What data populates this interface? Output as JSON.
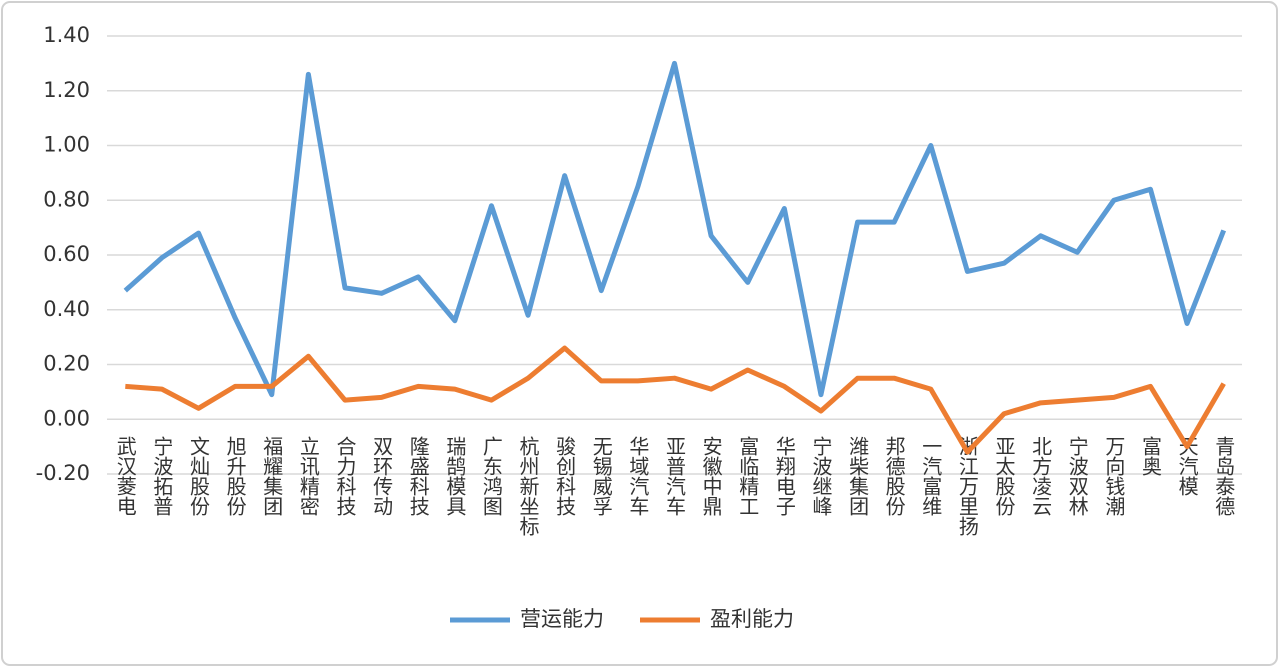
{
  "chart_data": {
    "type": "line",
    "categories": [
      "武汉菱电",
      "宁波拓普",
      "文灿股份",
      "旭升股份",
      "福耀集团",
      "立讯精密",
      "合力科技",
      "双环传动",
      "隆盛科技",
      "瑞鹄模具",
      "广东鸿图",
      "杭州新坐标",
      "骏创科技",
      "无锡威孚",
      "华域汽车",
      "亚普汽车",
      "安徽中鼎",
      "富临精工",
      "华翔电子",
      "宁波继峰",
      "潍柴集团",
      "邦德股份",
      "一汽富维",
      "浙江万里扬",
      "亚太股份",
      "北方凌云",
      "宁波双林",
      "万向钱潮",
      "富奥",
      "天汽模",
      "青岛泰德"
    ],
    "series": [
      {
        "name": "营运能力",
        "color": "#5b9bd5",
        "values": [
          0.47,
          0.59,
          0.68,
          0.37,
          0.09,
          1.26,
          0.48,
          0.46,
          0.52,
          0.36,
          0.78,
          0.38,
          0.89,
          0.47,
          0.85,
          1.3,
          0.67,
          0.5,
          0.77,
          0.09,
          0.72,
          0.72,
          1.0,
          0.54,
          0.57,
          0.67,
          0.61,
          0.8,
          0.84,
          0.35,
          0.69
        ]
      },
      {
        "name": "盈利能力",
        "color": "#ed7d31",
        "values": [
          0.12,
          0.11,
          0.04,
          0.12,
          0.12,
          0.23,
          0.07,
          0.08,
          0.12,
          0.11,
          0.07,
          0.15,
          0.26,
          0.14,
          0.14,
          0.15,
          0.11,
          0.18,
          0.12,
          0.03,
          0.15,
          0.15,
          0.11,
          -0.12,
          0.02,
          0.06,
          0.07,
          0.08,
          0.12,
          -0.1,
          0.13
        ]
      }
    ],
    "ylim": [
      -0.2,
      1.4
    ],
    "yticks": [
      {
        "value": -0.2,
        "label": "-0.20"
      },
      {
        "value": 0,
        "label": "0.00"
      },
      {
        "value": 0.2,
        "label": "0.20"
      },
      {
        "value": 0.4,
        "label": "0.40"
      },
      {
        "value": 0.6,
        "label": "0.60"
      },
      {
        "value": 0.8,
        "label": "0.80"
      },
      {
        "value": 1.0,
        "label": "1.00"
      },
      {
        "value": 1.2,
        "label": "1.20"
      },
      {
        "value": 1.4,
        "label": "1.40"
      }
    ],
    "grid": true,
    "legend": "bottom"
  }
}
